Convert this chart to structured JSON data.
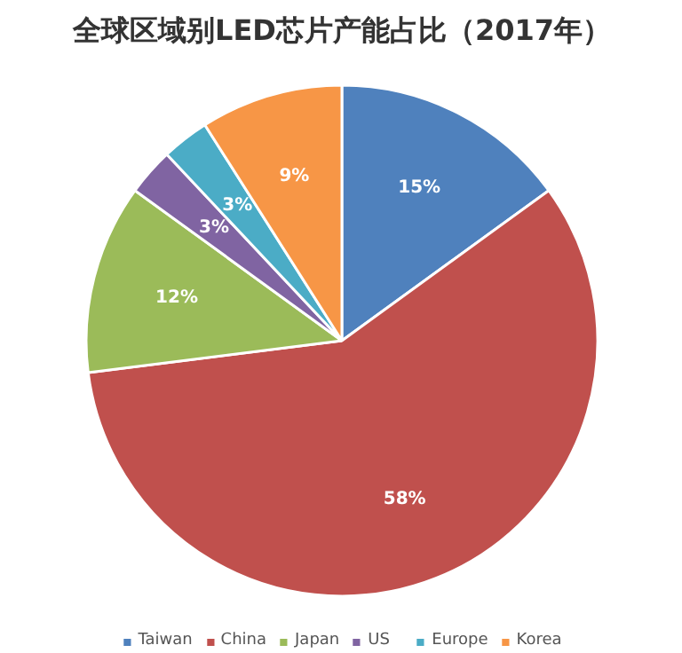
{
  "chart_data": {
    "type": "pie",
    "title": "全球区域别LED芯片产能占比（2017年）",
    "categories": [
      "Taiwan",
      "China",
      "Japan",
      "US",
      "Europe",
      "Korea"
    ],
    "values": [
      15,
      58,
      12,
      3,
      3,
      9
    ],
    "colors": [
      "#4f81bd",
      "#c0504d",
      "#9bbb59",
      "#8064a2",
      "#4bacc6",
      "#f79646"
    ],
    "value_labels": [
      "15%",
      "58%",
      "12%",
      "3%",
      "3%",
      "9%"
    ],
    "legend": "bottom"
  }
}
